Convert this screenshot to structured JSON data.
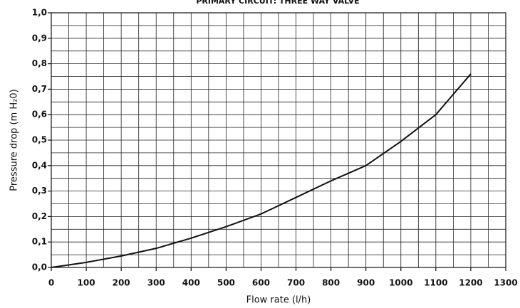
{
  "chart_data": {
    "type": "line",
    "title": "PRIMARY CIRCUIT: THREE WAY VALVE",
    "x_label": "Flow rate (l/h)",
    "y_label": "Pressure drop (m H₂0)",
    "x": [
      0,
      100,
      200,
      300,
      400,
      500,
      600,
      700,
      800,
      900,
      1000,
      1100,
      1200
    ],
    "series": [
      {
        "name": "Three way valve",
        "color": "#111111",
        "values": [
          0,
          0.02,
          0.045,
          0.075,
          0.115,
          0.16,
          0.21,
          0.275,
          0.34,
          0.4,
          0.495,
          0.6,
          0.76
        ]
      }
    ],
    "xlim": [
      0,
      1300
    ],
    "xticks": [
      0,
      100,
      200,
      300,
      400,
      500,
      600,
      700,
      800,
      900,
      1000,
      1100,
      1200,
      1300
    ],
    "x_minor_ticks": [
      50,
      150,
      250,
      350,
      450,
      550,
      650,
      750,
      850,
      950,
      1050,
      1150,
      1250
    ],
    "ylim": [
      0,
      1
    ],
    "yticks": [
      {
        "value": 0,
        "label": "0,0"
      },
      {
        "value": 0.1,
        "label": "0,1"
      },
      {
        "value": 0.2,
        "label": "0,2"
      },
      {
        "value": 0.3,
        "label": "0,3"
      },
      {
        "value": 0.4,
        "label": "0,4"
      },
      {
        "value": 0.5,
        "label": "0,5"
      },
      {
        "value": 0.6,
        "label": "0,6"
      },
      {
        "value": 0.7,
        "label": "0,7"
      },
      {
        "value": 0.8,
        "label": "0,8"
      },
      {
        "value": 0.9,
        "label": "0,9"
      },
      {
        "value": 1,
        "label": "1,0"
      }
    ],
    "y_minor_ticks": [
      0.05,
      0.15,
      0.25,
      0.35,
      0.45,
      0.55,
      0.65,
      0.75,
      0.85,
      0.95
    ],
    "grid": true
  }
}
